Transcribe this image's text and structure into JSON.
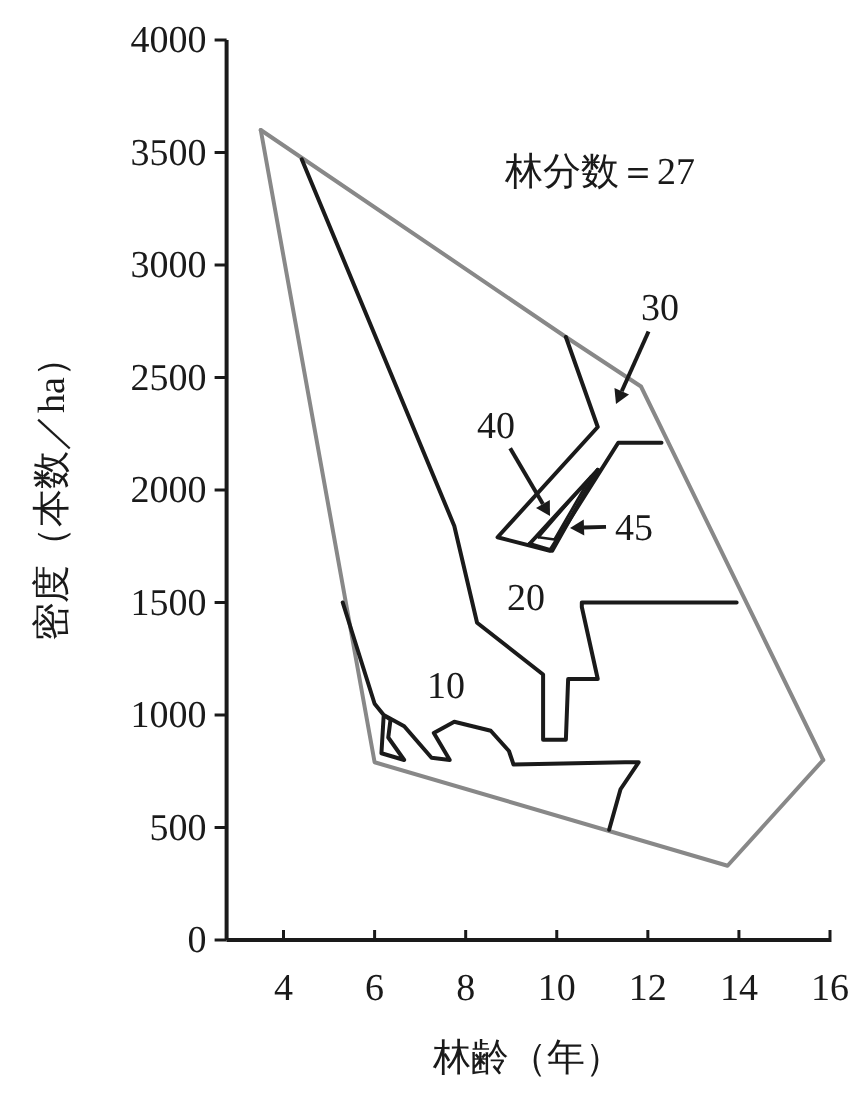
{
  "chart_data": {
    "type": "line",
    "xlabel": "林齢（年）",
    "ylabel": "密度（本数／ha）",
    "xlim": [
      2.75,
      16
    ],
    "ylim": [
      0,
      4000
    ],
    "xticks": [
      4,
      6,
      8,
      10,
      12,
      14,
      16
    ],
    "yticks": [
      0,
      500,
      1000,
      1500,
      2000,
      2500,
      3000,
      3500,
      4000
    ],
    "grid": false,
    "marker": "none",
    "series": [
      {
        "color": "#888888",
        "x": [
          3.5,
          10.2,
          11.85,
          15.85
        ],
        "values": [
          3600,
          2680,
          2460,
          800
        ]
      },
      {
        "color": "#888888",
        "x": [
          3.5,
          6.0,
          13.75,
          15.85
        ],
        "values": [
          3600,
          790,
          330,
          800
        ]
      },
      {
        "color": "#1a1a1a",
        "x": [
          5.3,
          6.0,
          6.2,
          6.15,
          6.65,
          6.3,
          6.35,
          6.2,
          6.65,
          7.25,
          7.65,
          7.3,
          7.75,
          8.55,
          8.95,
          9.05,
          11.5,
          11.8,
          11.4,
          11.15
        ],
        "values": [
          1500,
          1050,
          1000,
          830,
          800,
          900,
          980,
          1000,
          950,
          810,
          800,
          920,
          970,
          930,
          840,
          780,
          790,
          790,
          670,
          490
        ]
      },
      {
        "color": "#1a1a1a",
        "x": [
          4.4,
          7.75,
          8.25,
          9.7,
          9.7,
          10.2,
          10.25,
          10.9,
          10.55,
          10.55,
          13.95
        ],
        "values": [
          3470,
          1840,
          1410,
          1180,
          890,
          890,
          1160,
          1160,
          1480,
          1500,
          1500
        ]
      },
      {
        "color": "#1a1a1a",
        "x": [
          10.2,
          10.9,
          8.7,
          9.85,
          11.35,
          12.3
        ],
        "values": [
          2680,
          2280,
          1790,
          1730,
          2210,
          2210
        ]
      },
      {
        "color": "#1a1a1a",
        "x": [
          9.4,
          9.9,
          10.9
        ],
        "values": [
          1760,
          1730,
          2090
        ]
      },
      {
        "color": "#1a1a1a",
        "x": [
          9.4,
          10.9
        ],
        "values": [
          1760,
          2090
        ]
      },
      {
        "color": "#1a1a1a",
        "x": [
          9.6,
          9.95,
          10.75
        ],
        "values": [
          1790,
          1780,
          2060
        ]
      },
      {
        "color": "#1a1a1a",
        "x": [
          9.6,
          10.75
        ],
        "values": [
          1790,
          2060
        ]
      }
    ],
    "annotations": [
      "林分数＝27",
      "10",
      "20",
      "30",
      "40",
      "45"
    ]
  }
}
